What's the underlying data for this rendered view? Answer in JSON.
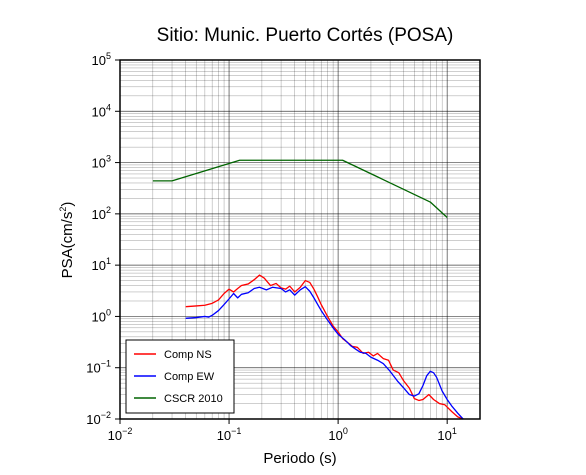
{
  "chart_data": {
    "type": "line",
    "title": "Sitio: Munic. Puerto Cortés (POSA)",
    "xlabel": "Periodo (s)",
    "ylabel_main": "PSA(cm/s",
    "ylabel_sup": "2",
    "ylabel_close": ")",
    "xscale": "log",
    "yscale": "log",
    "xlim": [
      0.01,
      20
    ],
    "ylim": [
      0.01,
      100000
    ],
    "grid": true,
    "legend_position": "bottom-left",
    "x_ticks": [
      {
        "value": 0.01,
        "base": "10",
        "exp": "−2"
      },
      {
        "value": 0.1,
        "base": "10",
        "exp": "−1"
      },
      {
        "value": 1,
        "base": "10",
        "exp": "0"
      },
      {
        "value": 10,
        "base": "10",
        "exp": "1"
      }
    ],
    "y_ticks": [
      {
        "value": 0.01,
        "base": "10",
        "exp": "−2"
      },
      {
        "value": 0.1,
        "base": "10",
        "exp": "−1"
      },
      {
        "value": 1,
        "base": "10",
        "exp": "0"
      },
      {
        "value": 10,
        "base": "10",
        "exp": "1"
      },
      {
        "value": 100,
        "base": "10",
        "exp": "2"
      },
      {
        "value": 1000,
        "base": "10",
        "exp": "3"
      },
      {
        "value": 10000,
        "base": "10",
        "exp": "4"
      },
      {
        "value": 100000,
        "base": "10",
        "exp": "5"
      }
    ],
    "series": [
      {
        "name": "Comp NS",
        "color": "#ff0000",
        "points": [
          [
            0.04,
            1.55
          ],
          [
            0.05,
            1.6
          ],
          [
            0.06,
            1.65
          ],
          [
            0.07,
            1.8
          ],
          [
            0.08,
            2.1
          ],
          [
            0.09,
            2.8
          ],
          [
            0.1,
            3.4
          ],
          [
            0.11,
            3.0
          ],
          [
            0.12,
            3.5
          ],
          [
            0.13,
            4.0
          ],
          [
            0.15,
            4.3
          ],
          [
            0.17,
            5.2
          ],
          [
            0.19,
            6.4
          ],
          [
            0.21,
            5.6
          ],
          [
            0.24,
            4.0
          ],
          [
            0.27,
            4.4
          ],
          [
            0.3,
            3.6
          ],
          [
            0.33,
            3.4
          ],
          [
            0.36,
            3.9
          ],
          [
            0.4,
            3.0
          ],
          [
            0.45,
            3.7
          ],
          [
            0.5,
            5.0
          ],
          [
            0.55,
            4.6
          ],
          [
            0.6,
            3.4
          ],
          [
            0.65,
            2.4
          ],
          [
            0.7,
            1.7
          ],
          [
            0.8,
            1.0
          ],
          [
            0.9,
            0.65
          ],
          [
            1.0,
            0.5
          ],
          [
            1.1,
            0.37
          ],
          [
            1.2,
            0.32
          ],
          [
            1.35,
            0.26
          ],
          [
            1.5,
            0.25
          ],
          [
            1.7,
            0.19
          ],
          [
            1.9,
            0.2
          ],
          [
            2.1,
            0.17
          ],
          [
            2.3,
            0.19
          ],
          [
            2.6,
            0.15
          ],
          [
            2.9,
            0.14
          ],
          [
            3.2,
            0.09
          ],
          [
            3.6,
            0.08
          ],
          [
            4.0,
            0.055
          ],
          [
            4.5,
            0.04
          ],
          [
            5.0,
            0.025
          ],
          [
            5.5,
            0.023
          ],
          [
            6.0,
            0.024
          ],
          [
            6.8,
            0.03
          ],
          [
            7.5,
            0.024
          ],
          [
            8.5,
            0.02
          ],
          [
            9.5,
            0.019
          ],
          [
            11,
            0.014
          ],
          [
            12.5,
            0.011
          ],
          [
            14,
            0.01
          ]
        ]
      },
      {
        "name": "Comp EW",
        "color": "#0000ff",
        "points": [
          [
            0.04,
            0.92
          ],
          [
            0.05,
            0.95
          ],
          [
            0.06,
            1.0
          ],
          [
            0.065,
            0.97
          ],
          [
            0.07,
            1.05
          ],
          [
            0.08,
            1.3
          ],
          [
            0.09,
            1.7
          ],
          [
            0.1,
            2.2
          ],
          [
            0.11,
            2.8
          ],
          [
            0.12,
            2.3
          ],
          [
            0.13,
            2.7
          ],
          [
            0.15,
            2.9
          ],
          [
            0.17,
            3.5
          ],
          [
            0.19,
            3.7
          ],
          [
            0.22,
            3.3
          ],
          [
            0.25,
            3.7
          ],
          [
            0.3,
            3.5
          ],
          [
            0.33,
            3.0
          ],
          [
            0.36,
            3.3
          ],
          [
            0.4,
            2.6
          ],
          [
            0.45,
            3.3
          ],
          [
            0.5,
            3.8
          ],
          [
            0.55,
            3.1
          ],
          [
            0.6,
            2.3
          ],
          [
            0.65,
            1.7
          ],
          [
            0.7,
            1.3
          ],
          [
            0.8,
            0.85
          ],
          [
            0.9,
            0.6
          ],
          [
            1.0,
            0.45
          ],
          [
            1.15,
            0.35
          ],
          [
            1.3,
            0.27
          ],
          [
            1.45,
            0.23
          ],
          [
            1.6,
            0.2
          ],
          [
            1.8,
            0.19
          ],
          [
            2.0,
            0.16
          ],
          [
            2.3,
            0.14
          ],
          [
            2.6,
            0.12
          ],
          [
            3.0,
            0.085
          ],
          [
            3.5,
            0.055
          ],
          [
            4.0,
            0.04
          ],
          [
            4.5,
            0.03
          ],
          [
            5.0,
            0.028
          ],
          [
            5.5,
            0.031
          ],
          [
            6.0,
            0.045
          ],
          [
            6.5,
            0.07
          ],
          [
            7.0,
            0.085
          ],
          [
            7.5,
            0.08
          ],
          [
            8.0,
            0.065
          ],
          [
            9.0,
            0.035
          ],
          [
            10,
            0.024
          ],
          [
            11,
            0.018
          ],
          [
            12.5,
            0.013
          ],
          [
            14,
            0.01
          ]
        ]
      },
      {
        "name": "CSCR 2010",
        "color": "#006400",
        "points": [
          [
            0.02,
            440
          ],
          [
            0.03,
            440
          ],
          [
            0.125,
            1110
          ],
          [
            1.1,
            1110
          ],
          [
            7.0,
            170
          ],
          [
            10,
            85
          ]
        ]
      }
    ]
  }
}
